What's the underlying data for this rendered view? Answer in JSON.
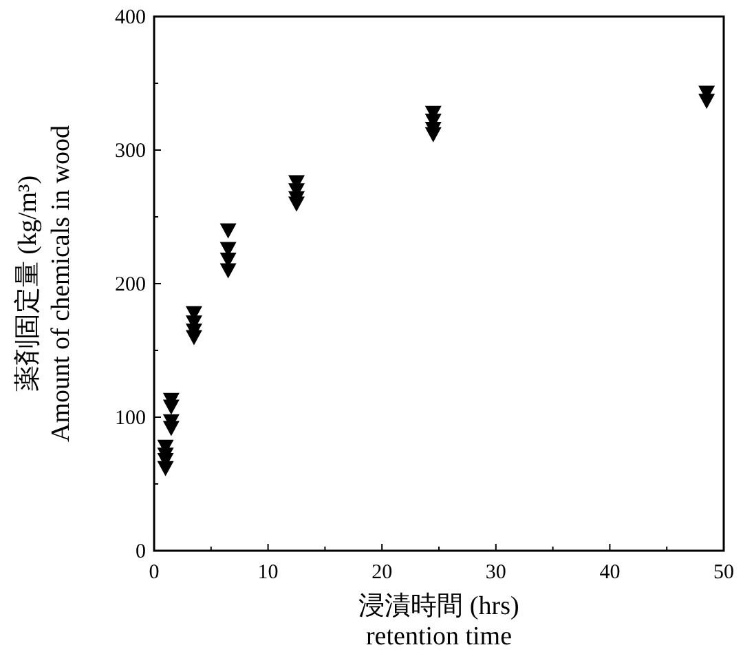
{
  "chart_data": {
    "type": "scatter",
    "xlabel": "浸漬時間 (hrs)\nretention time",
    "ylabel": "薬剤固定量 (kg/m³)\nAmount of chemicals in wood",
    "x": [
      1,
      1,
      1,
      1,
      1.5,
      1.5,
      1.5,
      1.5,
      3.5,
      3.5,
      3.5,
      3.5,
      6.5,
      6.5,
      6.5,
      6.5,
      12.5,
      12.5,
      12.5,
      12.5,
      24.5,
      24.5,
      24.5,
      24.5,
      48.5,
      48.5
    ],
    "values": [
      62,
      68,
      72,
      78,
      92,
      97,
      108,
      113,
      160,
      165,
      171,
      178,
      210,
      218,
      226,
      240,
      260,
      264,
      270,
      276,
      312,
      316,
      322,
      328,
      337,
      343
    ],
    "color": "#000000",
    "marker": "triangle",
    "grid": false,
    "xlim": [
      0,
      50
    ],
    "ylim": [
      0,
      400
    ],
    "xticks": [
      0,
      {
        "value": 5,
        "label": null
      },
      10,
      {
        "value": 15,
        "label": null
      },
      20,
      {
        "value": 25,
        "label": null
      },
      30,
      {
        "value": 35,
        "label": null
      },
      40,
      {
        "value": 45,
        "label": null
      },
      50
    ],
    "yticks": [
      0,
      {
        "value": 50,
        "label": null
      },
      100,
      {
        "value": 150,
        "label": null
      },
      200,
      {
        "value": 250,
        "label": null
      },
      300,
      {
        "value": 350,
        "label": null
      },
      400
    ]
  }
}
